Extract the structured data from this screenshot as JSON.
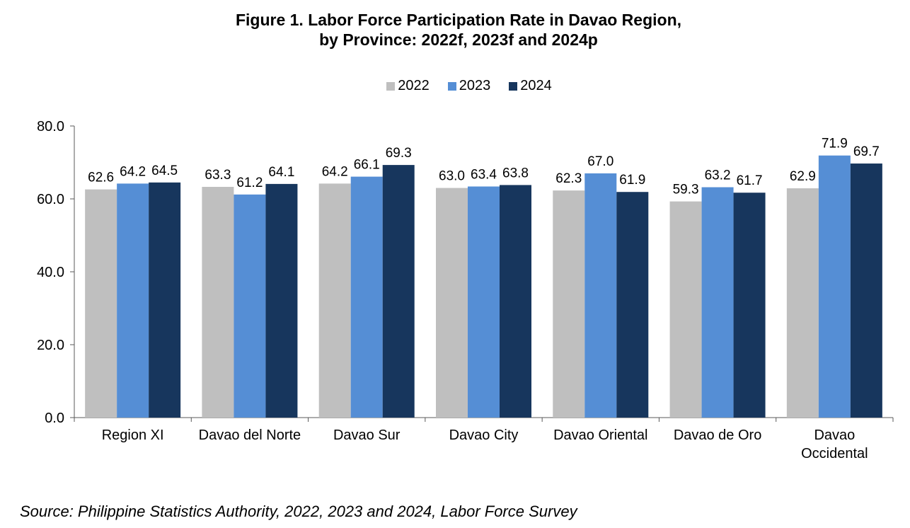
{
  "chart_data": {
    "type": "bar",
    "title": "Figure 1. Labor Force Participation Rate in Davao Region,",
    "subtitle": "by Province: 2022f, 2023f and 2024p",
    "categories": [
      [
        "Region XI"
      ],
      [
        "Davao del Norte"
      ],
      [
        "Davao Sur"
      ],
      [
        "Davao City"
      ],
      [
        "Davao Oriental"
      ],
      [
        "Davao de Oro"
      ],
      [
        "Davao",
        "Occidental"
      ]
    ],
    "series": [
      {
        "name": "2022",
        "color": "#bfbfbf",
        "values": [
          62.6,
          63.3,
          64.2,
          63.0,
          62.3,
          59.3,
          62.9
        ]
      },
      {
        "name": "2023",
        "color": "#558ed5",
        "values": [
          64.2,
          61.2,
          66.1,
          63.4,
          67.0,
          63.2,
          71.9
        ]
      },
      {
        "name": "2024",
        "color": "#17365d",
        "values": [
          64.5,
          64.1,
          69.3,
          63.8,
          61.9,
          61.7,
          69.7
        ]
      }
    ],
    "ylim": [
      0,
      80
    ],
    "yticks": [
      "0.0",
      "20.0",
      "40.0",
      "60.0",
      "80.0"
    ],
    "grid": false,
    "legend": "top-center"
  },
  "source": "Source: Philippine Statistics Authority, 2022, 2023 and 2024, Labor Force Survey"
}
